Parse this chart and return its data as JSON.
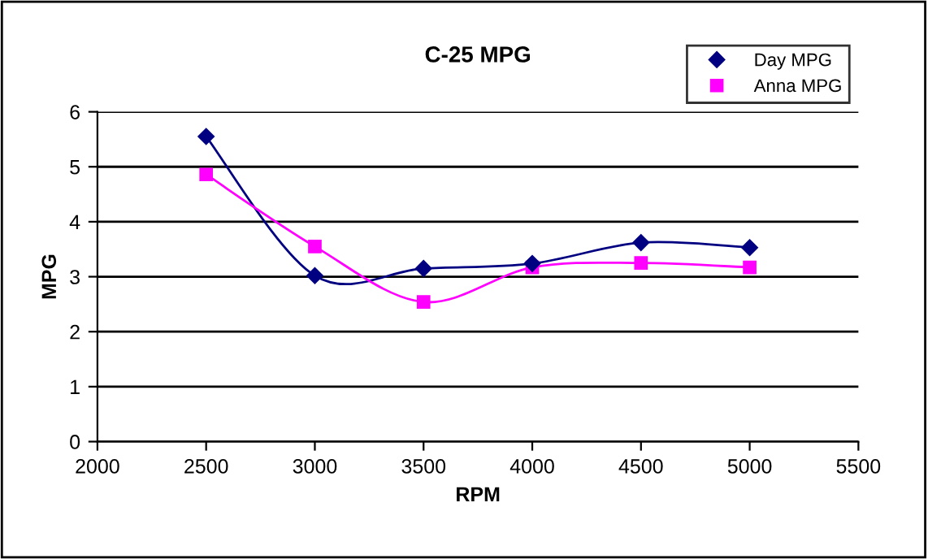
{
  "chart_data": {
    "type": "line",
    "title": "C-25 MPG",
    "xlabel": "RPM",
    "ylabel": "MPG",
    "x": [
      2500,
      3000,
      3500,
      4000,
      4500,
      5000
    ],
    "series": [
      {
        "name": "Day MPG",
        "color": "#000080",
        "marker": "diamond",
        "values": [
          5.55,
          3.02,
          3.15,
          3.24,
          3.62,
          3.53
        ]
      },
      {
        "name": "Anna MPG",
        "color": "#ff00ff",
        "marker": "square",
        "values": [
          4.86,
          3.55,
          2.54,
          3.17,
          3.25,
          3.17
        ]
      }
    ],
    "xlim": [
      2000,
      5500
    ],
    "xticks": [
      2000,
      2500,
      3000,
      3500,
      4000,
      4500,
      5000,
      5500
    ],
    "ylim": [
      0,
      6
    ],
    "yticks": [
      0,
      1,
      2,
      3,
      4,
      5,
      6
    ],
    "grid": "y",
    "legend": "top right",
    "line_style": "solid"
  }
}
